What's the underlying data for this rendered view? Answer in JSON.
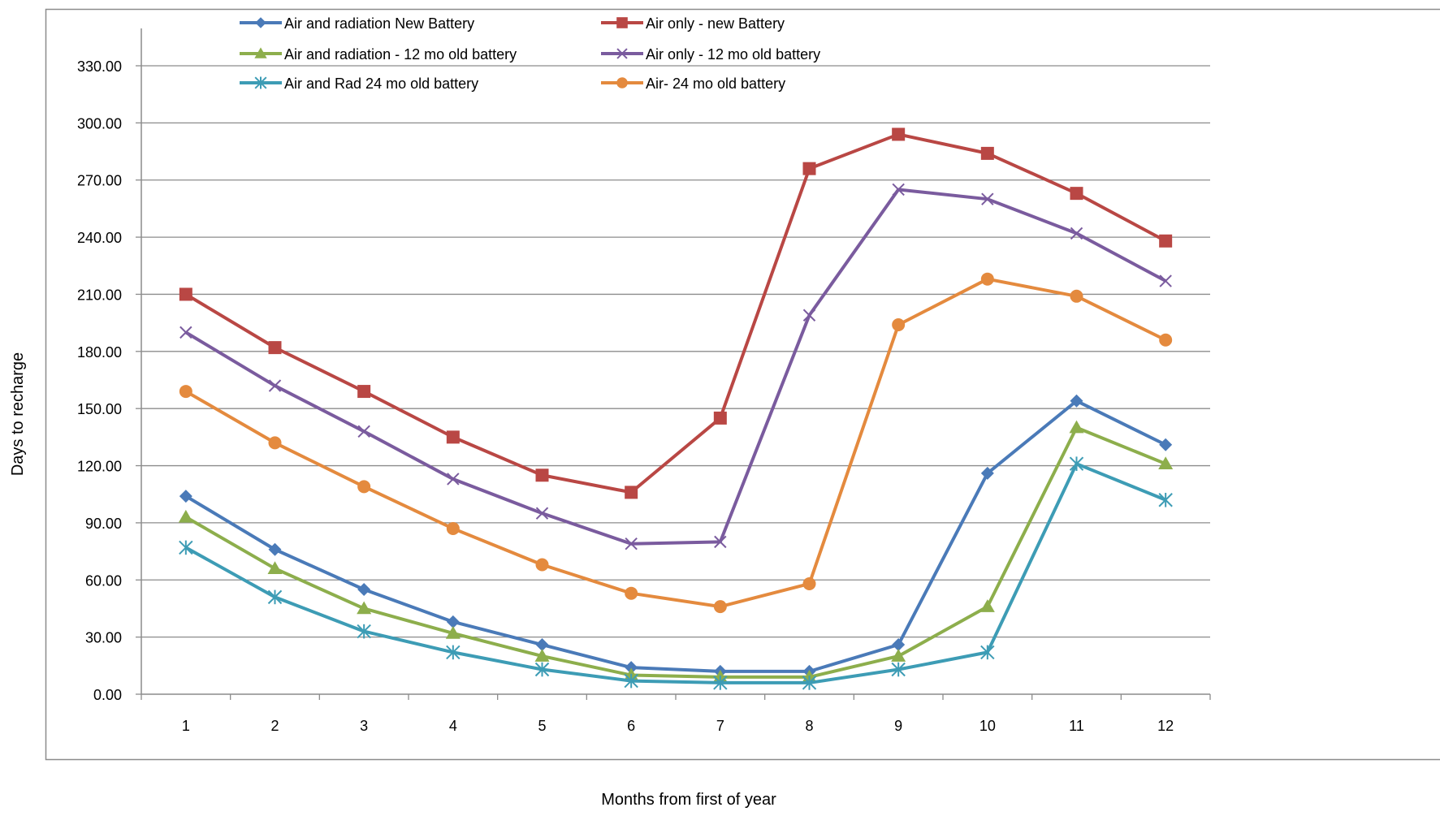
{
  "chart_data": {
    "type": "line",
    "title": "",
    "xlabel": "Months from first of year",
    "ylabel": "Days to recharge",
    "x": [
      1,
      2,
      3,
      4,
      5,
      6,
      7,
      8,
      9,
      10,
      11,
      12
    ],
    "x_tick_labels": [
      "1",
      "2",
      "3",
      "4",
      "5",
      "6",
      "7",
      "8",
      "9",
      "10",
      "11",
      "12"
    ],
    "y_ticks": [
      0,
      30,
      60,
      90,
      120,
      150,
      180,
      210,
      240,
      270,
      300,
      330
    ],
    "y_tick_labels": [
      "0.00",
      "30.00",
      "60.00",
      "90.00",
      "120.00",
      "150.00",
      "180.00",
      "210.00",
      "240.00",
      "270.00",
      "300.00",
      "330.00"
    ],
    "ylim": [
      0,
      350
    ],
    "grid": "horizontal",
    "legend_position": "top",
    "series": [
      {
        "name": "Air and radiation  New Battery",
        "color": "#4a7ab8",
        "marker": "diamond",
        "values": [
          104,
          76,
          55,
          38,
          26,
          14,
          12,
          12,
          26,
          116,
          154,
          131
        ]
      },
      {
        "name": "Air only - new Battery",
        "color": "#b94744",
        "marker": "square",
        "values": [
          210,
          182,
          159,
          135,
          115,
          106,
          145,
          276,
          294,
          284,
          263,
          238
        ]
      },
      {
        "name": "Air and radiation - 12 mo old battery",
        "color": "#8dae4c",
        "marker": "triangle",
        "values": [
          93,
          66,
          45,
          32,
          20,
          10,
          9,
          9,
          20,
          46,
          140,
          121
        ]
      },
      {
        "name": "Air only - 12 mo old battery",
        "color": "#7a5b9e",
        "marker": "x",
        "values": [
          190,
          162,
          138,
          113,
          95,
          79,
          80,
          199,
          265,
          260,
          242,
          217
        ]
      },
      {
        "name": "Air and Rad 24 mo old battery",
        "color": "#3d9cb5",
        "marker": "asterisk",
        "values": [
          77,
          51,
          33,
          22,
          13,
          7,
          6,
          6,
          13,
          22,
          121,
          102
        ]
      },
      {
        "name": "Air- 24 mo old battery",
        "color": "#e48a3e",
        "marker": "circle",
        "values": [
          159,
          132,
          109,
          87,
          68,
          53,
          46,
          58,
          194,
          218,
          209,
          186
        ]
      }
    ]
  }
}
